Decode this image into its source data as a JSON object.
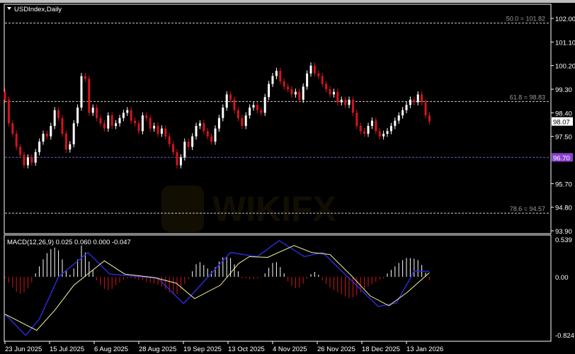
{
  "window": {
    "title": "USDIndex,Daily"
  },
  "watermark": "WIKIFX",
  "colors": {
    "background": "#000000",
    "bull": "#ffffff",
    "bear": "#d4141c",
    "grid_line": "#cccccc",
    "support_line": "#6a5acd",
    "current_price_bg": "#ffffff",
    "support_price_bg": "#8a3fd1",
    "macd_line": "#2a2ad0",
    "signal_line": "#f3f3a0",
    "hist_pos": "#ffffff",
    "hist_neg": "#d4141c"
  },
  "chart_data": [
    {
      "type": "candlestick",
      "title": "USDIndex,Daily",
      "ylim": [
        93.9,
        102.0
      ],
      "y_ticks": [
        "102.00",
        "101.10",
        "100.20",
        "99.30",
        "98.40",
        "97.50",
        "95.70",
        "94.80",
        "93.90"
      ],
      "x_tick_labels": [
        "23 Jun 2025",
        "15 Jul 2025",
        "6 Aug 2025",
        "28 Aug 2025",
        "19 Sep 2025",
        "13 Oct 2025",
        "4 Nov 2025",
        "26 Nov 2025",
        "18 Dec 2025",
        "13 Jan 2026"
      ],
      "first_open": 99.2,
      "closes": [
        98.9,
        98.0,
        97.6,
        97.1,
        96.8,
        96.4,
        96.7,
        96.5,
        96.9,
        97.3,
        97.6,
        97.5,
        97.9,
        98.5,
        98.2,
        97.6,
        97.0,
        97.2,
        98.0,
        98.6,
        99.8,
        99.7,
        98.4,
        98.6,
        98.2,
        98.0,
        97.8,
        98.3,
        97.9,
        98.0,
        98.2,
        98.4,
        98.5,
        98.1,
        98.0,
        97.7,
        98.3,
        98.2,
        97.8,
        97.9,
        97.6,
        97.8,
        97.5,
        97.2,
        96.9,
        96.4,
        96.7,
        97.3,
        97.1,
        97.5,
        97.9,
        98.0,
        97.7,
        97.5,
        97.3,
        97.8,
        98.2,
        98.6,
        99.1,
        98.9,
        98.5,
        98.2,
        97.9,
        98.3,
        98.6,
        98.7,
        98.5,
        98.4,
        99.0,
        99.5,
        99.8,
        100.0,
        99.6,
        99.4,
        99.3,
        99.1,
        99.2,
        98.9,
        99.4,
        99.9,
        100.2,
        99.9,
        99.8,
        99.5,
        99.3,
        99.1,
        99.2,
        98.8,
        98.9,
        98.7,
        98.9,
        98.4,
        97.9,
        97.7,
        97.6,
        97.9,
        98.1,
        97.7,
        97.5,
        97.6,
        97.7,
        97.9,
        98.1,
        98.3,
        98.5,
        98.7,
        98.9,
        98.8,
        99.1,
        98.8,
        98.3,
        98.07
      ],
      "current_price": "98.07",
      "levels": [
        {
          "label": "50.0 = 101.82",
          "value": 101.82,
          "style": "fib"
        },
        {
          "label": "61.8 = 98.83",
          "value": 98.83,
          "style": "fib"
        },
        {
          "label": "78.6 = 94.57",
          "value": 94.57,
          "style": "fib"
        },
        {
          "label": "96.70",
          "value": 96.7,
          "style": "support"
        }
      ]
    },
    {
      "type": "macd",
      "title": "MACD(12,26,9) 0.025 0.060 0.000 -0.047",
      "ylim": [
        -0.824,
        0.539
      ],
      "y_ticks": [
        "0.539",
        "0.00",
        "-0.824"
      ],
      "histogram": [
        -0.02,
        -0.08,
        -0.15,
        -0.21,
        -0.24,
        -0.22,
        -0.16,
        -0.08,
        0.05,
        0.15,
        0.25,
        0.34,
        0.4,
        0.42,
        0.38,
        0.25,
        0.1,
        0.03,
        0.12,
        0.25,
        0.45,
        0.35,
        0.22,
        0.1,
        -0.05,
        -0.12,
        -0.17,
        -0.19,
        -0.17,
        -0.12,
        -0.08,
        -0.04,
        -0.02,
        -0.02,
        -0.03,
        -0.04,
        -0.05,
        -0.07,
        -0.08,
        -0.09,
        -0.11,
        -0.14,
        -0.18,
        -0.22,
        -0.25,
        -0.24,
        -0.18,
        -0.1,
        -0.03,
        0.08,
        0.18,
        0.21,
        0.17,
        0.12,
        0.08,
        0.14,
        0.22,
        0.28,
        0.29,
        0.27,
        0.18,
        0.08,
        -0.02,
        -0.02,
        -0.03,
        -0.03,
        -0.02,
        -0.01,
        0.05,
        0.13,
        0.2,
        0.21,
        0.14,
        0.05,
        -0.06,
        -0.13,
        -0.16,
        -0.15,
        -0.1,
        -0.03,
        0.04,
        0.07,
        0.03,
        -0.05,
        -0.1,
        -0.15,
        -0.19,
        -0.22,
        -0.25,
        -0.28,
        -0.3,
        -0.29,
        -0.26,
        -0.22,
        -0.18,
        -0.14,
        -0.1,
        -0.07,
        -0.04,
        -0.02,
        0.05,
        0.1,
        0.15,
        0.2,
        0.24,
        0.27,
        0.27,
        0.26,
        0.24,
        0.17,
        0.06,
        -0.05
      ],
      "macd_line": [
        [
          0,
          -0.53
        ],
        [
          5.4,
          -0.83
        ],
        [
          9,
          -0.6
        ],
        [
          14,
          0.0
        ],
        [
          21.7,
          0.35
        ],
        [
          27.4,
          0.04
        ],
        [
          40,
          -0.02
        ],
        [
          46.7,
          -0.38
        ],
        [
          59,
          0.35
        ],
        [
          66,
          0.29
        ],
        [
          71.7,
          0.52
        ],
        [
          78.3,
          0.29
        ],
        [
          83.1,
          0.35
        ],
        [
          97.6,
          -0.42
        ],
        [
          102.4,
          -0.37
        ],
        [
          107,
          0.08
        ],
        [
          111,
          0.08
        ]
      ],
      "signal_line": [
        [
          0,
          -0.53
        ],
        [
          8.3,
          -0.76
        ],
        [
          13.1,
          -0.47
        ],
        [
          18,
          -0.12
        ],
        [
          26,
          0.23
        ],
        [
          31.3,
          0.04
        ],
        [
          39,
          -0.01
        ],
        [
          44.8,
          -0.09
        ],
        [
          49.6,
          -0.31
        ],
        [
          56.3,
          -0.12
        ],
        [
          61.1,
          0.19
        ],
        [
          63.9,
          0.29
        ],
        [
          68.7,
          0.28
        ],
        [
          75.6,
          0.45
        ],
        [
          80.2,
          0.35
        ],
        [
          85,
          0.32
        ],
        [
          90.7,
          0.01
        ],
        [
          95.5,
          -0.27
        ],
        [
          100.4,
          -0.41
        ],
        [
          105.2,
          -0.22
        ],
        [
          111,
          0.06
        ]
      ]
    }
  ]
}
